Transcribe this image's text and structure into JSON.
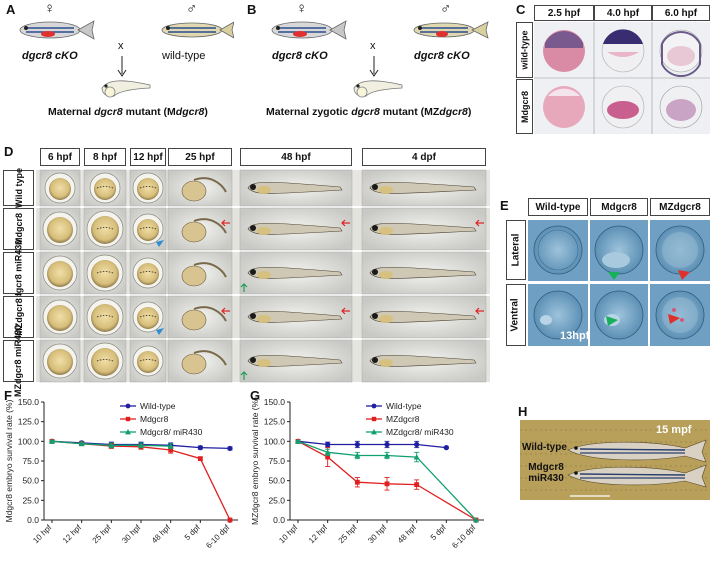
{
  "panels": {
    "A": {
      "letter": "A",
      "female_symbol": "♀",
      "male_symbol": "♂",
      "left_label": "dgcr8 cKO",
      "right_label": "wild-type",
      "cross": "x",
      "result_prefix": "Maternal ",
      "result_gene": "dgcr8",
      "result_mid": " mutant (M",
      "result_gene2": "dgcr8",
      "result_suffix": ")"
    },
    "B": {
      "letter": "B",
      "female_symbol": "♀",
      "male_symbol": "♂",
      "left_label": "dgcr8 cKO",
      "right_label": "dgcr8 cKO",
      "cross": "x",
      "result_prefix": "Maternal zygotic ",
      "result_gene": "dgcr8",
      "result_mid": " mutant (MZ",
      "result_gene2": "dgcr8",
      "result_suffix": ")"
    },
    "C": {
      "letter": "C",
      "columns": [
        "2.5 hpf",
        "4.0 hpf",
        "6.0 hpf"
      ],
      "rows": [
        "wild-type",
        "Mdgcr8"
      ]
    },
    "D": {
      "letter": "D",
      "columns": [
        "6 hpf",
        "8 hpf",
        "12 hpf",
        "25 hpf",
        "48 hpf",
        "4 dpf"
      ],
      "rows": [
        "Wild type",
        "Mdgcr8",
        "Mdgcr8 miR430",
        "MZdgcr8",
        "MZdgcr8 miR430"
      ]
    },
    "E": {
      "letter": "E",
      "columns": [
        "Wild-type",
        "Mdgcr8",
        "MZdgcr8"
      ],
      "rows": [
        "Lateral",
        "Ventral"
      ],
      "stage_label": "13hpf"
    },
    "F": {
      "letter": "F",
      "chart_data": {
        "type": "line",
        "ylabel": "Mdgcr8 embryo survival rate (%)",
        "categories": [
          "10 hpf",
          "12 hpf",
          "25 hpf",
          "30 hpf",
          "48 hpf",
          "5 dpf",
          "6-10 dpf"
        ],
        "ylim": [
          0,
          150
        ],
        "yticks": [
          "0.0",
          "25.0",
          "50.0",
          "75.0",
          "100.0",
          "125.0",
          "150.0"
        ],
        "legend_position": "top-right",
        "series": [
          {
            "name": "Wild-type",
            "color": "#1f1fa0",
            "marker": "circle",
            "values": [
              100,
              98,
              96,
              96,
              95,
              92,
              91
            ],
            "errors": [
              1,
              2,
              3,
              3,
              3,
              2,
              2
            ]
          },
          {
            "name": "Mdgcr8",
            "color": "#e02020",
            "marker": "square",
            "values": [
              100,
              97,
              94,
              93,
              89,
              78,
              0
            ],
            "errors": [
              1,
              2,
              3,
              3,
              4,
              2,
              0
            ]
          },
          {
            "name": "Mdgcr8/ miR430",
            "color": "#10a070",
            "marker": "triangle",
            "values": [
              100,
              97,
              95,
              95,
              94,
              null,
              null
            ],
            "errors": [
              1,
              2,
              3,
              3,
              3,
              0,
              0
            ]
          }
        ]
      }
    },
    "G": {
      "letter": "G",
      "chart_data": {
        "type": "line",
        "ylabel": "MZdgcr8 embryo survival rate (%)",
        "categories": [
          "10 hpf",
          "12 hpf",
          "25 hpf",
          "30 hpf",
          "48 hpf",
          "5 dpf",
          "6-10 dpf"
        ],
        "ylim": [
          0,
          150
        ],
        "yticks": [
          "0.0",
          "25.0",
          "50.0",
          "75.0",
          "100.0",
          "125.0",
          "150.0"
        ],
        "legend_position": "top-right",
        "series": [
          {
            "name": "Wild-type",
            "color": "#1f1fa0",
            "marker": "circle",
            "values": [
              100,
              96,
              96,
              96,
              96,
              92,
              null
            ],
            "errors": [
              1,
              3,
              4,
              4,
              4,
              1,
              0
            ]
          },
          {
            "name": "MZdgcr8",
            "color": "#e02020",
            "marker": "square",
            "values": [
              100,
              80,
              48,
              46,
              45,
              null,
              0
            ],
            "errors": [
              1,
              12,
              6,
              8,
              6,
              0,
              0
            ]
          },
          {
            "name": "MZdgcr8/ miR430",
            "color": "#10a070",
            "marker": "triangle",
            "values": [
              100,
              86,
              82,
              82,
              80,
              null,
              0
            ],
            "errors": [
              1,
              4,
              4,
              4,
              6,
              0,
              0
            ]
          }
        ]
      }
    },
    "H": {
      "letter": "H",
      "stage": "15 mpf",
      "top_label": "Wild-type",
      "bottom_label": "Mdgcr8 miR430"
    }
  }
}
